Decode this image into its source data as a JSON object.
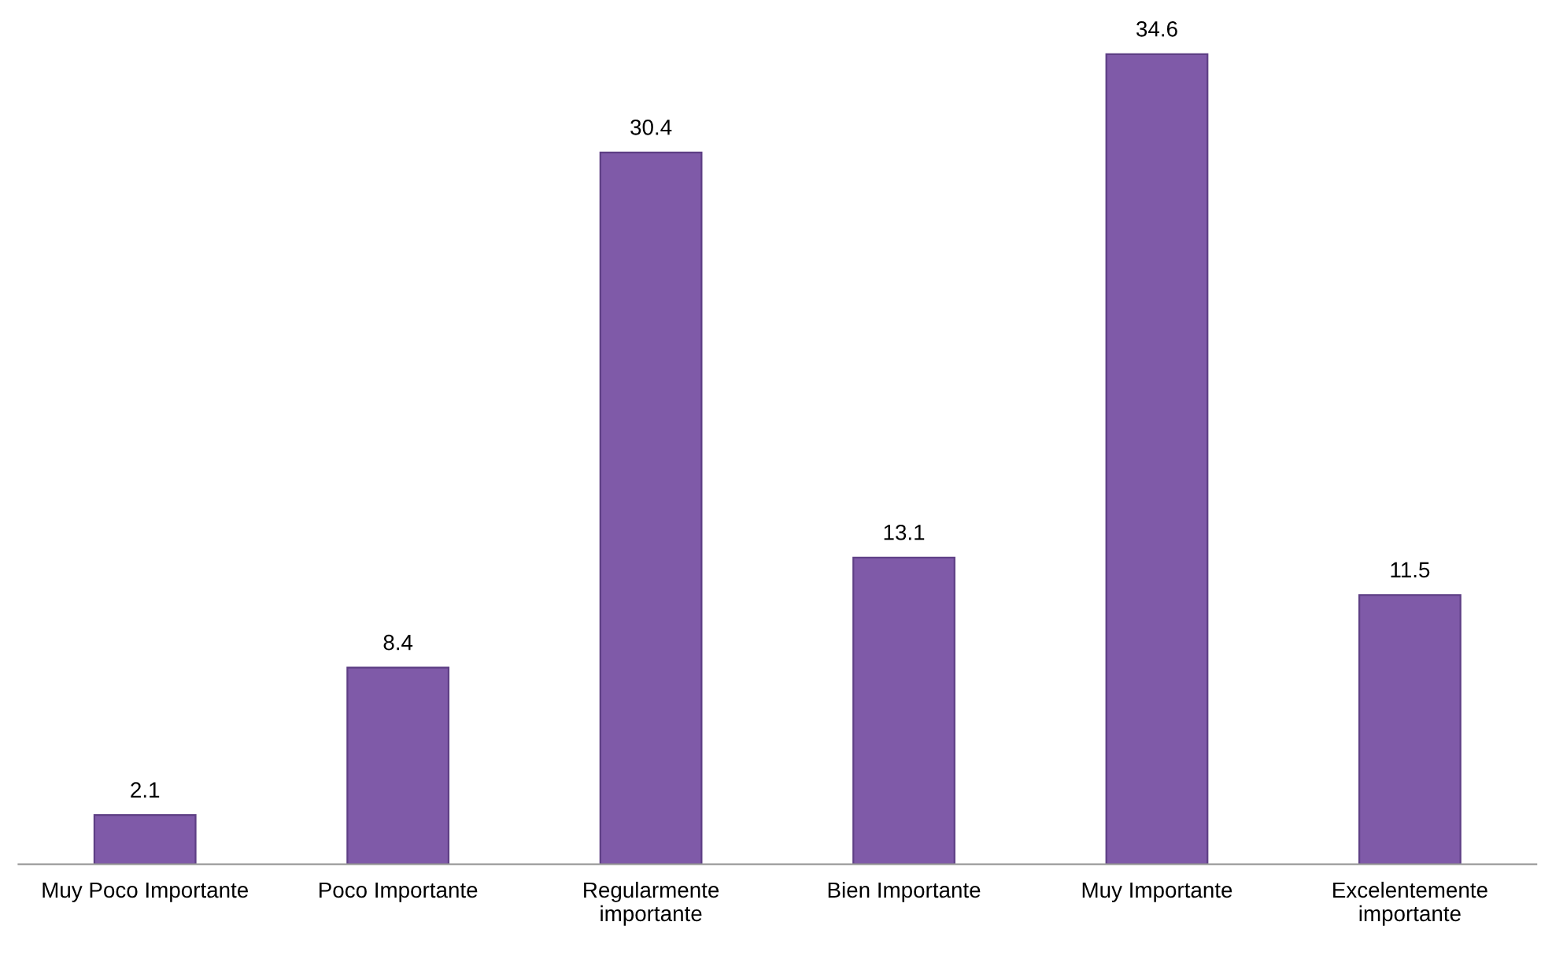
{
  "chart_data": {
    "type": "bar",
    "categories": [
      "Muy Poco Importante",
      "Poco Importante",
      "Regularmente\nimportante",
      "Bien Importante",
      "Muy Importante",
      "Excelentemente\nimportante"
    ],
    "values": [
      2.1,
      8.4,
      30.4,
      13.1,
      34.6,
      11.5
    ],
    "color": "#7f5aa8",
    "data_labels": true,
    "grid": false,
    "legend": false
  }
}
